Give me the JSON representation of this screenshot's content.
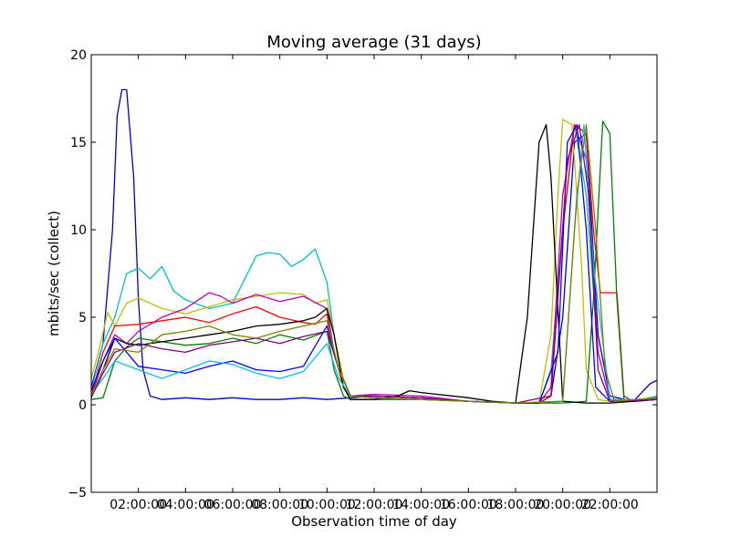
{
  "chart_data": {
    "type": "line",
    "title": "Moving average (31 days)",
    "xlabel": "Observation time of day",
    "ylabel": "mbits/sec (collect)",
    "xlim": [
      0.0,
      24.0
    ],
    "ylim": [
      -5,
      20
    ],
    "xticks": [
      {
        "value": 2,
        "label": "02:00:00"
      },
      {
        "value": 4,
        "label": "04:00:00"
      },
      {
        "value": 6,
        "label": "06:00:00"
      },
      {
        "value": 8,
        "label": "08:00:00"
      },
      {
        "value": 10,
        "label": "10:00:00"
      },
      {
        "value": 12,
        "label": "12:00:00"
      },
      {
        "value": 14,
        "label": "14:00:00"
      },
      {
        "value": 16,
        "label": "16:00:00"
      },
      {
        "value": 18,
        "label": "18:00:00"
      },
      {
        "value": 20,
        "label": "20:00:00"
      },
      {
        "value": 22,
        "label": "22:00:00"
      }
    ],
    "yticks": [
      {
        "value": -5,
        "label": "−5"
      },
      {
        "value": 0,
        "label": "0"
      },
      {
        "value": 5,
        "label": "5"
      },
      {
        "value": 10,
        "label": "10"
      },
      {
        "value": 15,
        "label": "15"
      },
      {
        "value": 20,
        "label": "20"
      }
    ],
    "grid": false,
    "series": [
      {
        "color": "#0000bf",
        "x": [
          0,
          0.5,
          0.9,
          1.1,
          1.3,
          1.5,
          1.8,
          2.0,
          2.2,
          2.5,
          3,
          4,
          5,
          6,
          7,
          8,
          9,
          10,
          11,
          12,
          14,
          16,
          18,
          19,
          19.5,
          20,
          20.5,
          21,
          21.5,
          22,
          23,
          23.7,
          24
        ],
        "y": [
          1.0,
          3.5,
          10,
          16.5,
          18.0,
          18.0,
          13,
          6,
          2,
          0.5,
          0.3,
          0.4,
          0.3,
          0.4,
          0.3,
          0.3,
          0.4,
          0.3,
          0.4,
          0.5,
          0.4,
          0.2,
          0.1,
          0.1,
          0.5,
          5,
          15,
          15.5,
          4,
          0.5,
          0.2,
          1.2,
          1.4
        ]
      },
      {
        "color": "#00bfbf",
        "x": [
          0,
          0.5,
          1,
          1.5,
          2,
          2.5,
          3,
          3.5,
          4,
          5,
          6,
          7,
          7.5,
          8,
          8.5,
          9,
          9.5,
          10,
          10.3,
          10.7,
          11,
          12,
          14,
          16,
          18,
          19,
          19.5,
          20,
          20.5,
          21,
          21.5,
          22,
          23,
          24
        ],
        "y": [
          0.8,
          3.5,
          5.0,
          7.5,
          7.8,
          7.2,
          7.9,
          6.5,
          6.0,
          5.5,
          5.8,
          8.5,
          8.7,
          8.6,
          7.9,
          8.3,
          8.9,
          7.0,
          4.0,
          1.0,
          0.5,
          0.5,
          0.4,
          0.2,
          0.1,
          0.1,
          2,
          10,
          16,
          12,
          3,
          0.3,
          0.2,
          0.5
        ]
      },
      {
        "color": "#bfbf00",
        "x": [
          0,
          0.3,
          0.7,
          1,
          1.5,
          2,
          3,
          4,
          5,
          6,
          7,
          8,
          9,
          9.5,
          10,
          10.3,
          10.7,
          11,
          12,
          14,
          16,
          18,
          19,
          19.5,
          19.8,
          20,
          20.4,
          20.8,
          21,
          21.5,
          22,
          23,
          24
        ],
        "y": [
          1.5,
          3,
          5.3,
          4.5,
          5.8,
          6.1,
          5.5,
          5.2,
          5.6,
          6.0,
          6.2,
          6.4,
          6.3,
          5.8,
          6.0,
          4,
          1.5,
          0.5,
          0.5,
          0.4,
          0.2,
          0.1,
          0.1,
          4,
          12,
          16.3,
          16,
          8,
          2,
          0.3,
          0.2,
          0.2,
          0.3
        ]
      },
      {
        "color": "#bf00bf",
        "x": [
          0,
          0.5,
          1,
          1.5,
          2,
          3,
          4,
          5,
          5.5,
          6,
          7,
          8,
          9,
          10,
          10.3,
          10.7,
          11,
          12,
          14,
          16,
          18,
          19,
          19.5,
          20,
          20.5,
          21,
          21.5,
          22,
          23,
          24
        ],
        "y": [
          0.5,
          2.5,
          4.0,
          3.5,
          4.2,
          5.0,
          5.5,
          6.4,
          6.2,
          5.8,
          6.3,
          5.9,
          6.2,
          5.5,
          3,
          1,
          0.5,
          0.6,
          0.5,
          0.2,
          0.1,
          0.1,
          1,
          12,
          16,
          14,
          3,
          0.3,
          0.2,
          0.4
        ]
      },
      {
        "color": "#ff0000",
        "x": [
          0,
          0.5,
          1,
          2,
          3,
          4,
          5,
          6,
          7,
          8,
          9,
          9.5,
          10,
          10.3,
          10.7,
          11,
          12,
          14,
          16,
          18,
          19,
          19.5,
          20,
          20.5,
          21,
          21.3,
          21.6,
          22,
          22.3,
          22.6,
          23,
          24
        ],
        "y": [
          0.5,
          3,
          4.5,
          4.6,
          4.8,
          5.0,
          4.7,
          5.2,
          5.6,
          5.0,
          4.7,
          4.6,
          5.2,
          3,
          1,
          0.5,
          0.5,
          0.4,
          0.2,
          0.1,
          0.1,
          0.5,
          10,
          16,
          15.5,
          10,
          6.4,
          6.4,
          6.4,
          0.5,
          0.2,
          0.4
        ]
      },
      {
        "color": "#008000",
        "x": [
          0,
          0.5,
          1,
          1.5,
          2,
          3,
          4,
          5,
          6,
          7,
          8,
          9,
          10,
          10.3,
          10.7,
          11,
          12,
          14,
          16,
          18,
          19,
          20,
          21,
          21.3,
          21.7,
          22,
          22.3,
          22.6,
          23,
          24
        ],
        "y": [
          0.3,
          0.4,
          2.5,
          3.3,
          3.8,
          3.6,
          3.4,
          3.5,
          3.8,
          3.5,
          4.0,
          3.7,
          4.2,
          2,
          0.5,
          0.3,
          0.3,
          0.3,
          0.2,
          0.1,
          0.1,
          0.1,
          0.2,
          6,
          16.2,
          15.5,
          6,
          0.3,
          0.2,
          0.3
        ]
      },
      {
        "color": "#000000",
        "x": [
          0,
          0.5,
          1,
          1.5,
          2,
          3,
          4,
          5,
          6,
          7,
          8,
          9,
          9.5,
          10,
          10.3,
          10.7,
          11,
          12,
          13,
          13.5,
          14,
          16,
          17,
          18,
          18.5,
          19,
          19.3,
          19.5,
          20,
          21,
          22,
          23,
          24
        ],
        "y": [
          0.5,
          2,
          3.8,
          3.5,
          3.4,
          3.6,
          3.8,
          4.0,
          4.2,
          4.5,
          4.6,
          4.8,
          5.0,
          5.5,
          4,
          1,
          0.3,
          0.3,
          0.5,
          0.8,
          0.7,
          0.4,
          0.2,
          0.1,
          5,
          15.0,
          16.0,
          13,
          0.2,
          0.1,
          0.1,
          0.2,
          0.3
        ]
      },
      {
        "color": "#0000ff",
        "x": [
          0,
          0.5,
          1,
          2,
          3,
          4,
          5,
          6,
          7,
          8,
          9,
          10,
          10.5,
          11,
          12,
          14,
          16,
          18,
          19,
          19.8,
          20.2,
          20.6,
          21,
          21.4,
          22,
          24
        ],
        "y": [
          0.8,
          2.5,
          3.8,
          2.2,
          2.0,
          1.8,
          2.2,
          2.5,
          2.0,
          1.9,
          2.2,
          4.5,
          2,
          0.5,
          0.4,
          0.3,
          0.2,
          0.1,
          0.1,
          3,
          15,
          16,
          10,
          1,
          0.2,
          0.3
        ]
      },
      {
        "color": "#00bfff",
        "x": [
          0,
          0.5,
          1,
          2,
          3,
          4,
          5,
          6,
          7,
          8,
          9,
          10,
          10.5,
          11,
          12,
          14,
          16,
          18,
          20,
          20.5,
          20.9,
          21.3,
          22,
          24
        ],
        "y": [
          0.6,
          1.5,
          2.5,
          2.0,
          1.5,
          2.0,
          2.5,
          2.3,
          1.8,
          1.5,
          1.9,
          3.5,
          1.5,
          0.5,
          0.4,
          0.3,
          0.2,
          0.1,
          0.2,
          10,
          16,
          8,
          0.3,
          0.3
        ]
      },
      {
        "color": "#800080",
        "x": [
          0,
          0.5,
          1,
          2,
          3,
          4,
          5,
          6,
          7,
          8,
          9,
          10,
          10.5,
          11,
          12,
          14,
          16,
          18,
          19.5,
          20.2,
          20.7,
          21.1,
          21.5,
          22,
          24
        ],
        "y": [
          0.4,
          1.8,
          3.0,
          3.5,
          3.2,
          3.0,
          3.4,
          3.6,
          3.8,
          3.5,
          3.9,
          4.2,
          2,
          0.5,
          0.5,
          0.4,
          0.2,
          0.1,
          0.5,
          14,
          16,
          12,
          2,
          0.2,
          0.3
        ]
      },
      {
        "color": "#808000",
        "x": [
          0,
          0.5,
          1,
          2,
          3,
          4,
          5,
          6,
          7,
          8,
          9,
          10,
          10.5,
          11,
          12,
          14,
          16,
          18,
          20,
          20.6,
          21.0,
          21.4,
          21.8,
          22.2,
          24
        ],
        "y": [
          0.5,
          2.0,
          3.2,
          3.0,
          4.0,
          4.2,
          4.5,
          4.0,
          3.8,
          4.2,
          4.5,
          4.8,
          2,
          0.5,
          0.4,
          0.3,
          0.2,
          0.1,
          0.2,
          12,
          16,
          10,
          2,
          0.2,
          0.4
        ]
      }
    ]
  }
}
